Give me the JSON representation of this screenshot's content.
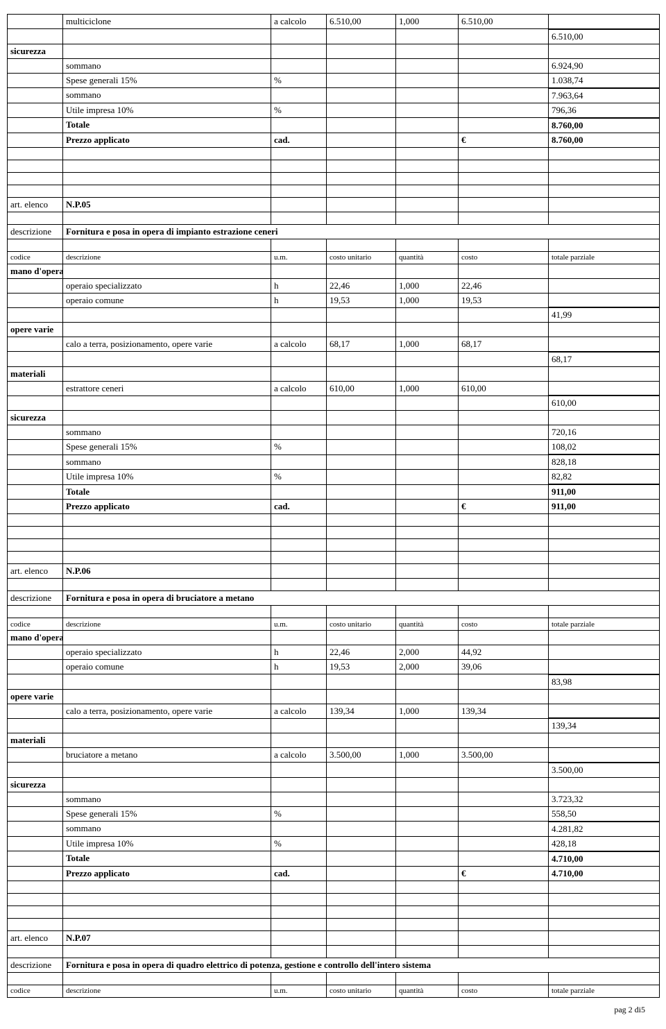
{
  "hdr": {
    "cod": "codice",
    "desc": "descrizione",
    "um": "u.m.",
    "cu": "costo unitario",
    "qta": "quantità",
    "cost": "costo",
    "tp": "totale parziale"
  },
  "lab": {
    "elenco": "art. elenco",
    "descr": "descrizione",
    "mano": "mano d'opera",
    "opspec": "operaio specializzato",
    "opcom": "operaio comune",
    "opvarie": "opere varie",
    "calo": "calo a terra, posizionamento, opere varie",
    "materiali": "materiali",
    "sicurezza": "sicurezza",
    "sommano": "sommano",
    "spese": "Spese generali 15%",
    "utile": "Utile impresa 10%",
    "totale": "Totale",
    "prezzo": "Prezzo applicato",
    "cad": "cad.",
    "euro": "€",
    "pct": "%",
    "h": "h",
    "acalc": "a calcolo"
  },
  "top": {
    "multi": "multiciclone",
    "v1": "6.510,00",
    "q": "1,000",
    "v2": "6.510,00",
    "sub": "6.510,00",
    "som1": "6.924,90",
    "sp": "1.038,74",
    "som2": "7.963,64",
    "ut": "796,36",
    "tot": "8.760,00",
    "pz": "8.760,00"
  },
  "s05": {
    "code": "N.P.05",
    "title": "Fornitura e posa in opera di impianto estrazione ceneri",
    "spec_c": "22,46",
    "spec_q": "1,000",
    "spec_v": "22,46",
    "com_c": "19,53",
    "com_q": "1,000",
    "com_v": "19,53",
    "mano_tot": "41,99",
    "calo_c": "68,17",
    "calo_q": "1,000",
    "calo_v": "68,17",
    "ov_tot": "68,17",
    "mat": "estrattore ceneri",
    "mat_c": "610,00",
    "mat_q": "1,000",
    "mat_v": "610,00",
    "mat_tot": "610,00",
    "som1": "720,16",
    "sp": "108,02",
    "som2": "828,18",
    "ut": "82,82",
    "tot": "911,00",
    "pz": "911,00"
  },
  "s06": {
    "code": "N.P.06",
    "title": "Fornitura e posa in opera di bruciatore a metano",
    "spec_c": "22,46",
    "spec_q": "2,000",
    "spec_v": "44,92",
    "com_c": "19,53",
    "com_q": "2,000",
    "com_v": "39,06",
    "mano_tot": "83,98",
    "calo_c": "139,34",
    "calo_q": "1,000",
    "calo_v": "139,34",
    "ov_tot": "139,34",
    "mat": "bruciatore a metano",
    "mat_c": "3.500,00",
    "mat_q": "1,000",
    "mat_v": "3.500,00",
    "mat_tot": "3.500,00",
    "som1": "3.723,32",
    "sp": "558,50",
    "som2": "4.281,82",
    "ut": "428,18",
    "tot": "4.710,00",
    "pz": "4.710,00"
  },
  "s07": {
    "code": "N.P.07",
    "title": "Fornitura e posa in opera di quadro elettrico di potenza, gestione e controllo dell'intero sistema"
  },
  "footer": "pag 2 di5"
}
